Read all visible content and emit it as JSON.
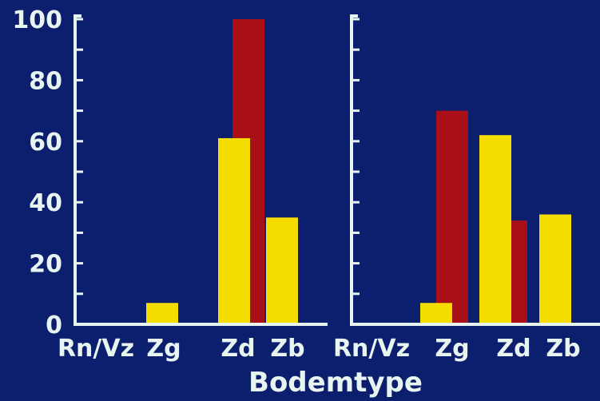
{
  "colors": {
    "background": "#0b1f6e",
    "axis": "#e8f4f0",
    "text": "#e8f4f0",
    "series_yellow": "#f5dd00",
    "series_red": "#a80f16"
  },
  "chart_data": [
    {
      "type": "bar",
      "categories": [
        "Rn/Vz",
        "Zg",
        "Zd",
        "Zb"
      ],
      "ylim": [
        0,
        100
      ],
      "yticks": [
        0,
        20,
        40,
        60,
        80,
        100
      ],
      "xlabel": "Bodemtype",
      "ylabel": "",
      "grid": false,
      "series": [
        {
          "color": "yellow",
          "values": [
            0,
            7,
            61,
            35
          ]
        },
        {
          "color": "red",
          "values": [
            0,
            0,
            100,
            0
          ]
        }
      ]
    },
    {
      "type": "bar",
      "categories": [
        "Rn/Vz",
        "Zg",
        "Zd",
        "Zb"
      ],
      "ylim": [
        0,
        100
      ],
      "yticks": [
        0,
        20,
        40,
        60,
        80,
        100
      ],
      "xlabel": "Bodemtype",
      "ylabel": "",
      "grid": false,
      "series": [
        {
          "color": "yellow",
          "values": [
            0,
            7,
            62,
            36
          ]
        },
        {
          "color": "red",
          "values": [
            0,
            70,
            34,
            0
          ]
        }
      ]
    }
  ],
  "xlabel_text": "Bodemtype"
}
